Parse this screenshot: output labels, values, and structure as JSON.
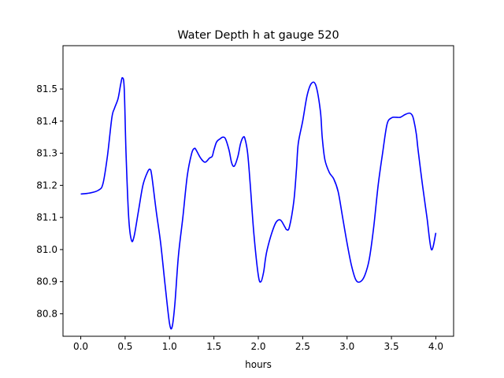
{
  "chart_data": {
    "type": "line",
    "title": "Water Depth h at gauge 520",
    "xlabel": "hours",
    "ylabel": "",
    "xlim": [
      -0.2,
      4.2
    ],
    "ylim": [
      80.73,
      81.635
    ],
    "xticks": [
      0.0,
      0.5,
      1.0,
      1.5,
      2.0,
      2.5,
      3.0,
      3.5,
      4.0
    ],
    "xtick_labels": [
      "0.0",
      "0.5",
      "1.0",
      "1.5",
      "2.0",
      "2.5",
      "3.0",
      "3.5",
      "4.0"
    ],
    "yticks": [
      80.8,
      80.9,
      81.0,
      81.1,
      81.2,
      81.3,
      81.4,
      81.5
    ],
    "ytick_labels": [
      "80.8",
      "80.9",
      "81.0",
      "81.1",
      "81.2",
      "81.3",
      "81.4",
      "81.5"
    ],
    "grid": false,
    "series": [
      {
        "name": "",
        "color": "#0000ff",
        "x": [
          0.0,
          0.1,
          0.2,
          0.25,
          0.3,
          0.35,
          0.38,
          0.42,
          0.45,
          0.47,
          0.49,
          0.51,
          0.54,
          0.57,
          0.6,
          0.65,
          0.7,
          0.75,
          0.78,
          0.8,
          0.85,
          0.9,
          0.95,
          1.0,
          1.03,
          1.06,
          1.1,
          1.15,
          1.2,
          1.25,
          1.28,
          1.3,
          1.35,
          1.4,
          1.45,
          1.48,
          1.5,
          1.53,
          1.57,
          1.6,
          1.63,
          1.67,
          1.7,
          1.73,
          1.77,
          1.8,
          1.83,
          1.85,
          1.88,
          1.91,
          1.95,
          2.0,
          2.03,
          2.06,
          2.08,
          2.1,
          2.15,
          2.2,
          2.25,
          2.3,
          2.32,
          2.35,
          2.4,
          2.43,
          2.45,
          2.5,
          2.55,
          2.6,
          2.65,
          2.7,
          2.72,
          2.75,
          2.8,
          2.85,
          2.9,
          2.95,
          3.0,
          3.05,
          3.1,
          3.15,
          3.2,
          3.25,
          3.3,
          3.35,
          3.4,
          3.45,
          3.5,
          3.55,
          3.6,
          3.65,
          3.7,
          3.73,
          3.75,
          3.78,
          3.8,
          3.85,
          3.9,
          3.95,
          4.0
        ],
        "values": [
          81.173,
          81.176,
          81.185,
          81.205,
          81.29,
          81.41,
          81.44,
          81.47,
          81.515,
          81.535,
          81.5,
          81.3,
          81.1,
          81.03,
          81.04,
          81.12,
          81.2,
          81.24,
          81.25,
          81.23,
          81.12,
          81.02,
          80.89,
          80.77,
          80.76,
          80.83,
          80.98,
          81.1,
          81.23,
          81.3,
          81.315,
          81.31,
          81.285,
          81.272,
          81.285,
          81.29,
          81.31,
          81.335,
          81.345,
          81.35,
          81.345,
          81.31,
          81.27,
          81.26,
          81.29,
          81.33,
          81.35,
          81.345,
          81.3,
          81.2,
          81.05,
          80.92,
          80.9,
          80.93,
          80.97,
          81.0,
          81.05,
          81.085,
          81.092,
          81.07,
          81.062,
          81.07,
          81.15,
          81.25,
          81.33,
          81.4,
          81.48,
          81.518,
          81.51,
          81.43,
          81.35,
          81.28,
          81.24,
          81.22,
          81.18,
          81.1,
          81.02,
          80.95,
          80.905,
          80.9,
          80.92,
          80.97,
          81.07,
          81.2,
          81.3,
          81.39,
          81.41,
          81.412,
          81.412,
          81.42,
          81.425,
          81.42,
          81.405,
          81.36,
          81.31,
          81.2,
          81.1,
          81.0,
          81.052
        ]
      }
    ]
  }
}
